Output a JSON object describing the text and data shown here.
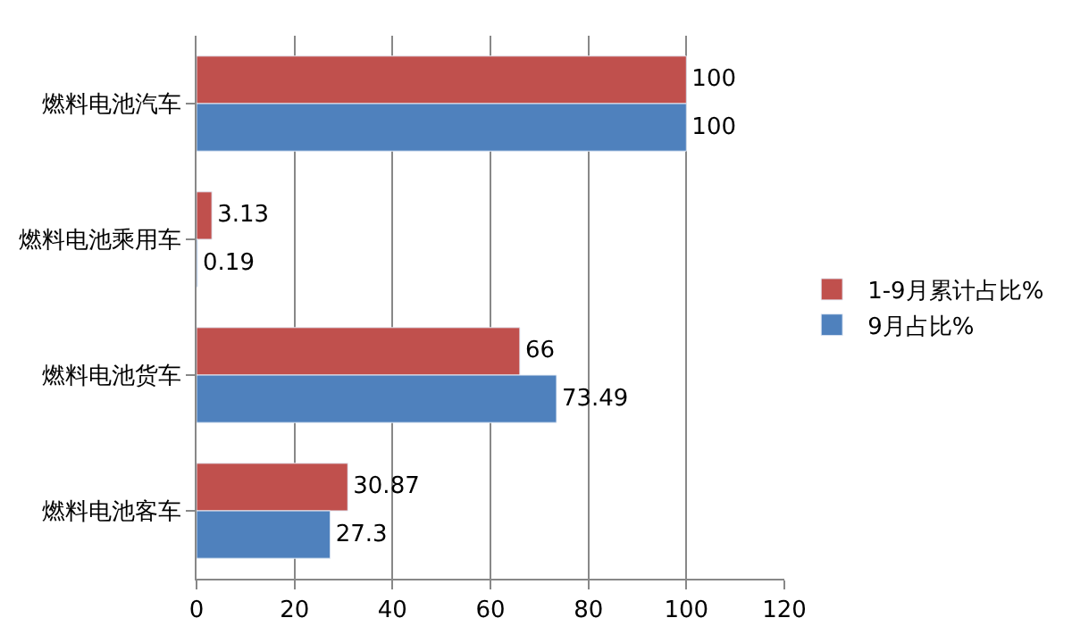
{
  "chart_data": {
    "type": "bar",
    "orientation": "horizontal",
    "categories": [
      "燃料电池汽车",
      "燃料电池乘用车",
      "燃料电池货车",
      "燃料电池客车"
    ],
    "series": [
      {
        "name": "1-9月累计占比%",
        "color": "#c0504d",
        "values": [
          100,
          3.13,
          66,
          30.87
        ]
      },
      {
        "name": "9月占比%",
        "color": "#4f81bd",
        "values": [
          100,
          0.19,
          73.49,
          27.3
        ]
      }
    ],
    "xlim": [
      0,
      120
    ],
    "xticks": [
      0,
      20,
      40,
      60,
      80,
      100,
      120
    ],
    "grid": "x",
    "legend": "right",
    "data_labels": true
  }
}
